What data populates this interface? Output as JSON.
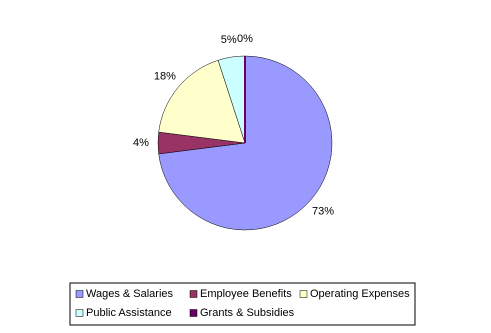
{
  "chart_data": {
    "type": "pie",
    "categories": [
      "Wages & Salaries",
      "Employee Benefits",
      "Operating Expenses",
      "Public Assistance",
      "Grants & Subsidies"
    ],
    "values": [
      73,
      4,
      18,
      5,
      0
    ],
    "value_labels": [
      "73%",
      "4%",
      "18%",
      "5%",
      "0%"
    ],
    "colors": [
      "#9999ff",
      "#993366",
      "#ffffcc",
      "#ccffff",
      "#660066"
    ],
    "legend": "bottom"
  }
}
